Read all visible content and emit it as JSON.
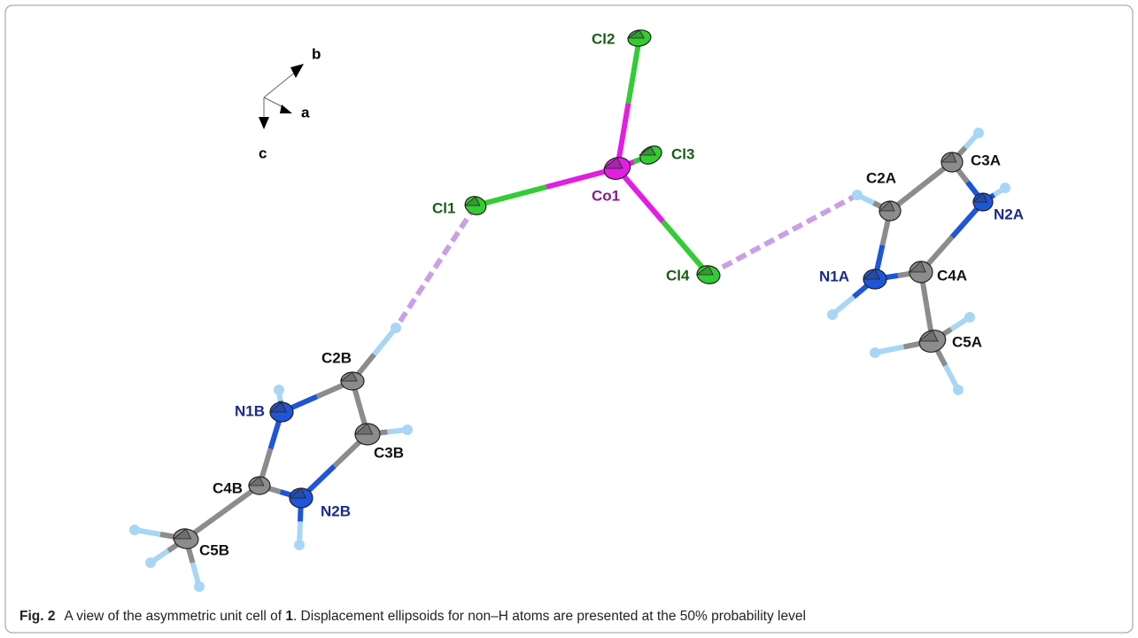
{
  "axes": {
    "b": "b",
    "a": "a",
    "c": "c"
  },
  "atom_labels": [
    "Co1",
    "Cl1",
    "Cl2",
    "Cl3",
    "Cl4",
    "C2A",
    "C3A",
    "N2A",
    "C4A",
    "N1A",
    "C5A",
    "C2B",
    "C3B",
    "N2B",
    "C4B",
    "N1B",
    "C5B"
  ],
  "caption": {
    "label": "Fig. 2",
    "text_before": "A view of the asymmetric unit cell of ",
    "compound": "1",
    "text_after": ". Displacement ellipsoids for non–H atoms are presented at the 50% probability level"
  }
}
